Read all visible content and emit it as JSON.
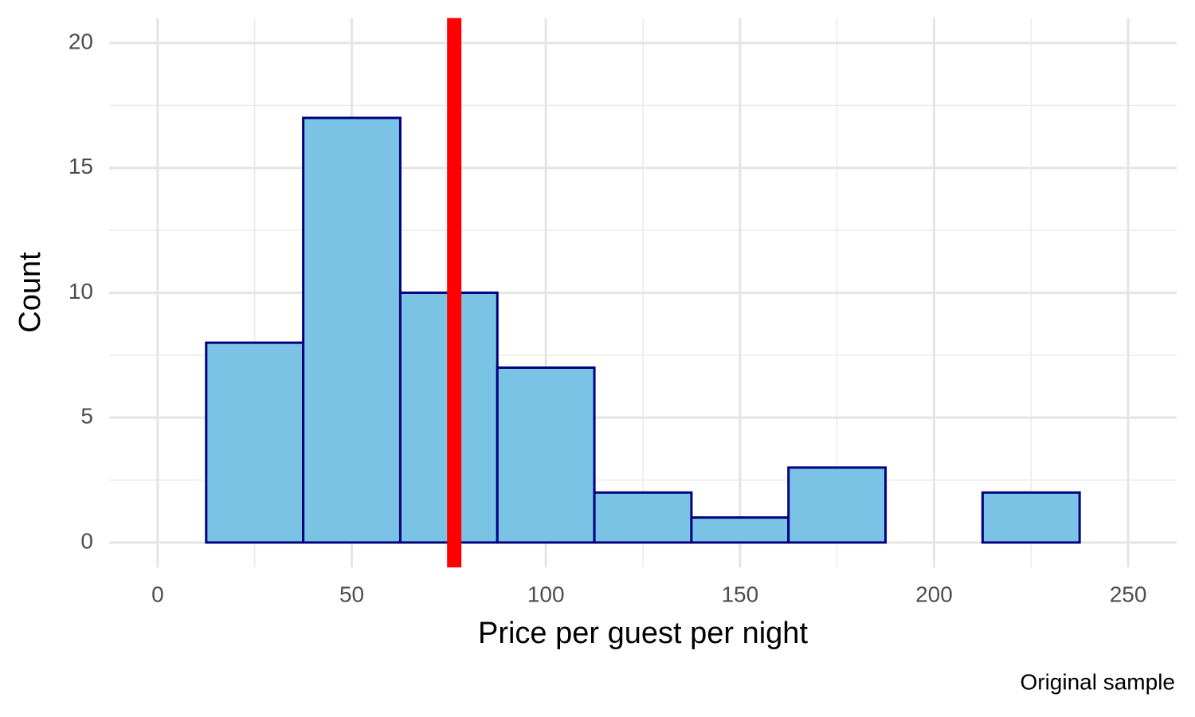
{
  "chart_data": {
    "type": "histogram",
    "x_label": "Price per guest per night",
    "y_label": "Count",
    "caption": "Original sample",
    "bins": [
      12.5,
      37.5,
      62.5,
      87.5,
      112.5,
      137.5,
      162.5,
      187.5,
      212.5,
      237.5
    ],
    "counts": [
      8,
      17,
      10,
      7,
      2,
      1,
      3,
      0,
      2
    ],
    "fill": "#7bc3e5",
    "edge_color": "#000080",
    "vline": {
      "x": 76.4,
      "color": "#ff0000"
    },
    "xlim": [
      -12.5,
      262.5
    ],
    "xticks": [
      0,
      50,
      100,
      150,
      200,
      250
    ],
    "minor_xticks": [
      25,
      75,
      125,
      175,
      225
    ],
    "ylim": [
      -1,
      21
    ],
    "yticks": [
      0,
      5,
      10,
      15,
      20
    ],
    "minor_yticks": [
      2.5,
      7.5,
      12.5,
      17.5
    ],
    "grid": true
  }
}
